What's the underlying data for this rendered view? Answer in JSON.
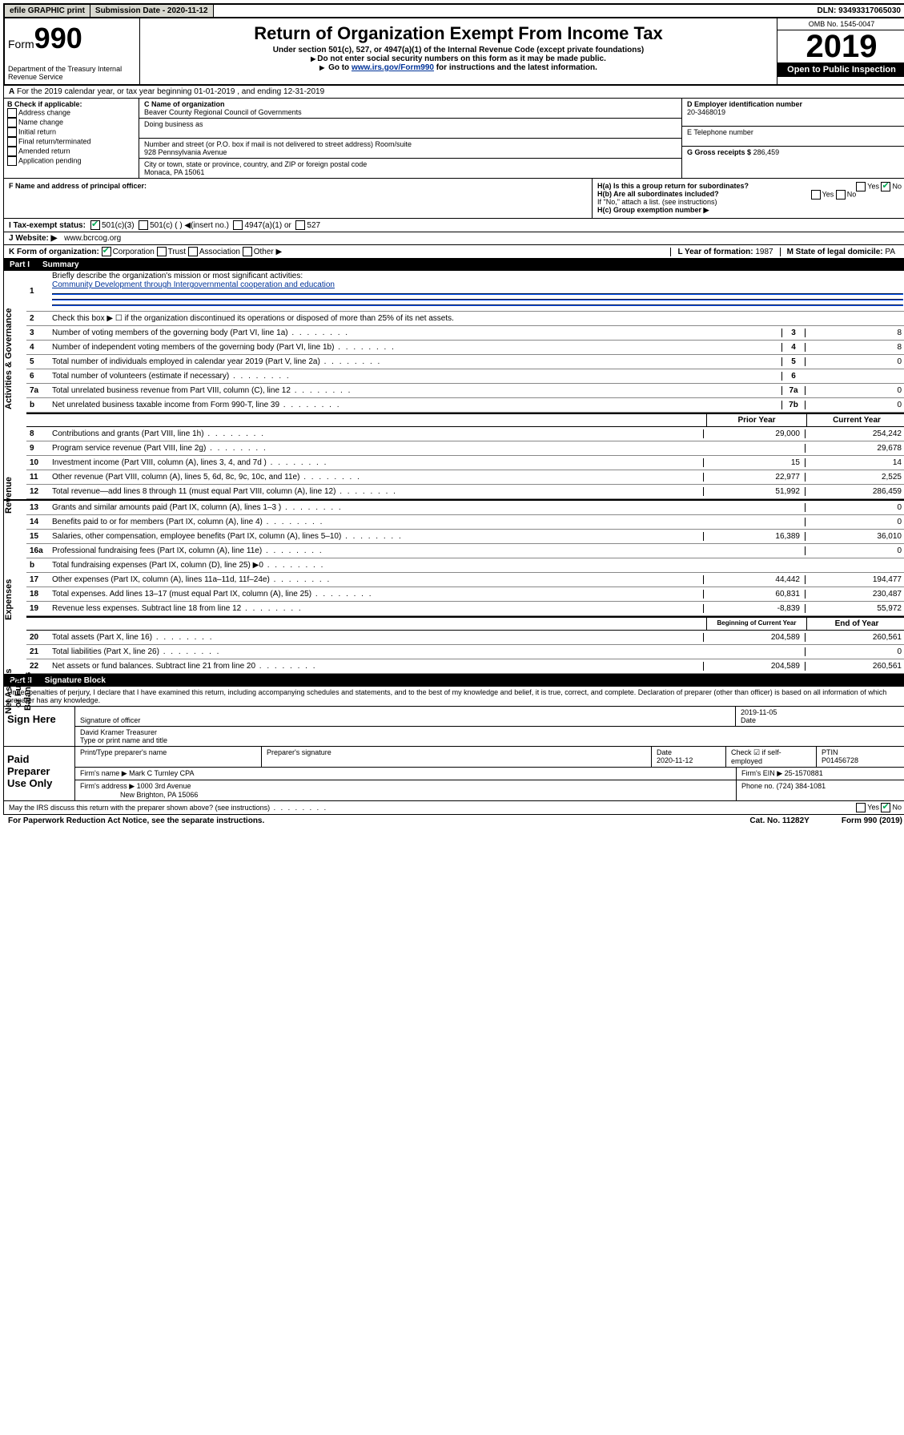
{
  "top": {
    "efile": "efile GRAPHIC print",
    "sub_label": "Submission Date - 2020-11-12",
    "dln": "DLN: 93493317065030"
  },
  "header": {
    "form_prefix": "Form",
    "form_num": "990",
    "dept": "Department of the Treasury\nInternal Revenue Service",
    "title": "Return of Organization Exempt From Income Tax",
    "sub1": "Under section 501(c), 527, or 4947(a)(1) of the Internal Revenue Code (except private foundations)",
    "sub2": "Do not enter social security numbers on this form as it may be made public.",
    "sub3_pre": "Go to ",
    "sub3_link": "www.irs.gov/Form990",
    "sub3_post": " for instructions and the latest information.",
    "omb": "OMB No. 1545-0047",
    "year": "2019",
    "open": "Open to Public Inspection"
  },
  "row_a": "For the 2019 calendar year, or tax year beginning 01-01-2019    , and ending 12-31-2019",
  "box_b": {
    "title": "B Check if applicable:",
    "items": [
      "Address change",
      "Name change",
      "Initial return",
      "Final return/terminated",
      "Amended return",
      "Application pending"
    ]
  },
  "box_c": {
    "name_lbl": "C Name of organization",
    "name": "Beaver County Regional Council of Governments",
    "dba_lbl": "Doing business as",
    "addr_lbl": "Number and street (or P.O. box if mail is not delivered to street address)       Room/suite",
    "addr": "928 Pennsylvania Avenue",
    "city_lbl": "City or town, state or province, country, and ZIP or foreign postal code",
    "city": "Monaca, PA  15061"
  },
  "box_d": {
    "lbl": "D Employer identification number",
    "val": "20-3468019"
  },
  "box_e": {
    "lbl": "E Telephone number",
    "val": ""
  },
  "box_g": {
    "lbl": "G Gross receipts $",
    "val": "286,459"
  },
  "box_f": "F  Name and address of principal officer:",
  "box_h": {
    "a": "H(a)  Is this a group return for subordinates?",
    "b": "H(b)  Are all subordinates included?",
    "b_note": "If \"No,\" attach a list. (see instructions)",
    "c": "H(c)  Group exemption number ▶"
  },
  "row_i": {
    "lbl": "I   Tax-exempt status:",
    "opts": [
      "501(c)(3)",
      "501(c) (  ) ◀(insert no.)",
      "4947(a)(1) or",
      "527"
    ]
  },
  "row_j": {
    "lbl": "J   Website: ▶",
    "val": "www.bcrcog.org"
  },
  "row_k": "K Form of organization:",
  "row_k_opts": [
    "Corporation",
    "Trust",
    "Association",
    "Other ▶"
  ],
  "row_l": {
    "lbl": "L Year of formation:",
    "val": "1987"
  },
  "row_m": {
    "lbl": "M State of legal domicile:",
    "val": "PA"
  },
  "part1": {
    "num": "Part I",
    "title": "Summary"
  },
  "summary": {
    "l1": "Briefly describe the organization's mission or most significant activities:",
    "l1_text": "Community Development through Intergovernmental cooperation and education",
    "l2": "Check this box ▶ ☐  if the organization discontinued its operations or disposed of more than 25% of its net assets.",
    "rows_single": [
      {
        "n": "3",
        "d": "Number of voting members of the governing body (Part VI, line 1a)",
        "box": "3",
        "v": "8"
      },
      {
        "n": "4",
        "d": "Number of independent voting members of the governing body (Part VI, line 1b)",
        "box": "4",
        "v": "8"
      },
      {
        "n": "5",
        "d": "Total number of individuals employed in calendar year 2019 (Part V, line 2a)",
        "box": "5",
        "v": "0"
      },
      {
        "n": "6",
        "d": "Total number of volunteers (estimate if necessary)",
        "box": "6",
        "v": ""
      },
      {
        "n": "7a",
        "d": "Total unrelated business revenue from Part VIII, column (C), line 12",
        "box": "7a",
        "v": "0"
      },
      {
        "n": "b",
        "d": "Net unrelated business taxable income from Form 990-T, line 39",
        "box": "7b",
        "v": "0"
      }
    ],
    "col_hdr_prior": "Prior Year",
    "col_hdr_curr": "Current Year",
    "revenue": [
      {
        "n": "8",
        "d": "Contributions and grants (Part VIII, line 1h)",
        "p": "29,000",
        "c": "254,242"
      },
      {
        "n": "9",
        "d": "Program service revenue (Part VIII, line 2g)",
        "p": "",
        "c": "29,678"
      },
      {
        "n": "10",
        "d": "Investment income (Part VIII, column (A), lines 3, 4, and 7d )",
        "p": "15",
        "c": "14"
      },
      {
        "n": "11",
        "d": "Other revenue (Part VIII, column (A), lines 5, 6d, 8c, 9c, 10c, and 11e)",
        "p": "22,977",
        "c": "2,525"
      },
      {
        "n": "12",
        "d": "Total revenue—add lines 8 through 11 (must equal Part VIII, column (A), line 12)",
        "p": "51,992",
        "c": "286,459"
      }
    ],
    "expenses": [
      {
        "n": "13",
        "d": "Grants and similar amounts paid (Part IX, column (A), lines 1–3 )",
        "p": "",
        "c": "0"
      },
      {
        "n": "14",
        "d": "Benefits paid to or for members (Part IX, column (A), line 4)",
        "p": "",
        "c": "0"
      },
      {
        "n": "15",
        "d": "Salaries, other compensation, employee benefits (Part IX, column (A), lines 5–10)",
        "p": "16,389",
        "c": "36,010"
      },
      {
        "n": "16a",
        "d": "Professional fundraising fees (Part IX, column (A), line 11e)",
        "p": "",
        "c": "0"
      },
      {
        "n": "b",
        "d": "Total fundraising expenses (Part IX, column (D), line 25) ▶0",
        "p": "—",
        "c": "—"
      },
      {
        "n": "17",
        "d": "Other expenses (Part IX, column (A), lines 11a–11d, 11f–24e)",
        "p": "44,442",
        "c": "194,477"
      },
      {
        "n": "18",
        "d": "Total expenses. Add lines 13–17 (must equal Part IX, column (A), line 25)",
        "p": "60,831",
        "c": "230,487"
      },
      {
        "n": "19",
        "d": "Revenue less expenses. Subtract line 18 from line 12",
        "p": "-8,839",
        "c": "55,972"
      }
    ],
    "col_hdr_begin": "Beginning of Current Year",
    "col_hdr_end": "End of Year",
    "net": [
      {
        "n": "20",
        "d": "Total assets (Part X, line 16)",
        "p": "204,589",
        "c": "260,561"
      },
      {
        "n": "21",
        "d": "Total liabilities (Part X, line 26)",
        "p": "",
        "c": "0"
      },
      {
        "n": "22",
        "d": "Net assets or fund balances. Subtract line 21 from line 20",
        "p": "204,589",
        "c": "260,561"
      }
    ]
  },
  "part2": {
    "num": "Part II",
    "title": "Signature Block"
  },
  "perjury": "Under penalties of perjury, I declare that I have examined this return, including accompanying schedules and statements, and to the best of my knowledge and belief, it is true, correct, and complete. Declaration of preparer (other than officer) is based on all information of which preparer has any knowledge.",
  "sign": {
    "here": "Sign Here",
    "date": "2019-11-05",
    "sig_lbl": "Signature of officer",
    "date_lbl": "Date",
    "name": "David Kramer  Treasurer",
    "name_lbl": "Type or print name and title"
  },
  "paid": {
    "lbl": "Paid Preparer Use Only",
    "h1": "Print/Type preparer's name",
    "h2": "Preparer's signature",
    "h3": "Date",
    "h3v": "2020-11-12",
    "h4": "Check ☑ if self-employed",
    "h5": "PTIN",
    "h5v": "P01456728",
    "firm_lbl": "Firm's name      ▶",
    "firm": "Mark C Turnley CPA",
    "ein_lbl": "Firm's EIN ▶",
    "ein": "25-1570881",
    "addr_lbl": "Firm's address ▶",
    "addr1": "1000 3rd Avenue",
    "addr2": "New Brighton, PA  15066",
    "phone_lbl": "Phone no.",
    "phone": "(724) 384-1081"
  },
  "discuss": "May the IRS discuss this return with the preparer shown above? (see instructions)",
  "footer": {
    "pra": "For Paperwork Reduction Act Notice, see the separate instructions.",
    "cat": "Cat. No. 11282Y",
    "form": "Form 990 (2019)"
  }
}
